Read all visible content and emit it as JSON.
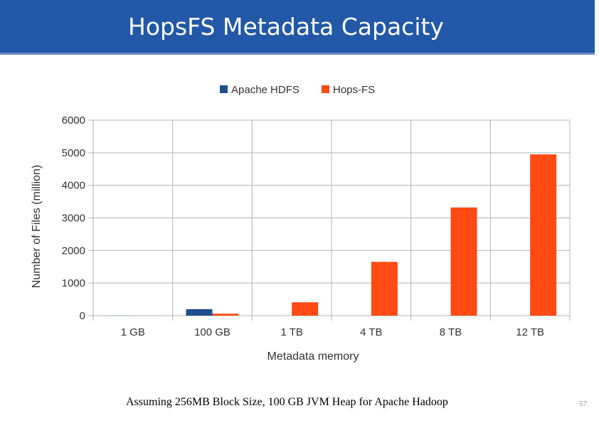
{
  "slide": {
    "title": "HopsFS Metadata Capacity",
    "footnote": "Assuming 256MB Block Size, 100 GB JVM Heap for Apache Hadoop",
    "page_number": "57"
  },
  "colors": {
    "title_bar": "#2258a7",
    "apache_hdfs": "#1f4e8c",
    "hops_fs": "#ff4a14",
    "grid": "#b3b3b3"
  },
  "chart_data": {
    "type": "bar",
    "title": "",
    "xlabel": "Metadata memory",
    "ylabel": "Number of Files (million)",
    "categories": [
      "1 GB",
      "100 GB",
      "1 TB",
      "4 TB",
      "8 TB",
      "12 TB"
    ],
    "series": [
      {
        "name": "Apache HDFS",
        "color": "#1f4e8c",
        "values": [
          2,
          200,
          null,
          null,
          null,
          null
        ]
      },
      {
        "name": "Hops-FS",
        "color": "#ff4a14",
        "values": [
          1,
          60,
          410,
          1650,
          3320,
          4950
        ]
      }
    ],
    "ylim": [
      0,
      6000
    ],
    "yticks": [
      0,
      1000,
      2000,
      3000,
      4000,
      5000,
      6000
    ],
    "grid": true,
    "legend_position": "top-center"
  }
}
